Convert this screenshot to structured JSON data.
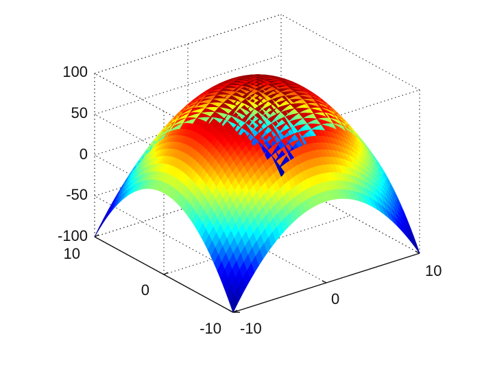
{
  "chart_data": {
    "type": "surface",
    "title": "",
    "xlabel": "",
    "ylabel": "",
    "zlabel": "",
    "function": "z = 100 - x^2 - y^2",
    "x": {
      "range": [
        -10,
        10
      ],
      "ticks": [
        -10,
        0,
        10
      ],
      "tick_labels": [
        "-10",
        "0",
        "10"
      ]
    },
    "y": {
      "range": [
        -10,
        10
      ],
      "ticks": [
        -10,
        0,
        10
      ],
      "tick_labels": [
        "-10",
        "0",
        "10"
      ]
    },
    "z": {
      "range": [
        -100,
        100
      ],
      "ticks": [
        -100,
        -50,
        0,
        50,
        100
      ],
      "tick_labels": [
        "-100",
        "-50",
        "0",
        "50",
        "100"
      ]
    },
    "corner_values": [
      {
        "x": -10,
        "y": -10,
        "z": -100
      },
      {
        "x": 10,
        "y": -10,
        "z": -100
      },
      {
        "x": 10,
        "y": 10,
        "z": -100
      },
      {
        "x": -10,
        "y": 10,
        "z": -100
      }
    ],
    "peak": {
      "x": 0,
      "y": 0,
      "z": 100
    },
    "grid": true,
    "box": true,
    "colormap": "jet",
    "colormap_stops": [
      "#00008f",
      "#0000ff",
      "#00ffff",
      "#ffff00",
      "#ff0000",
      "#800000"
    ]
  }
}
